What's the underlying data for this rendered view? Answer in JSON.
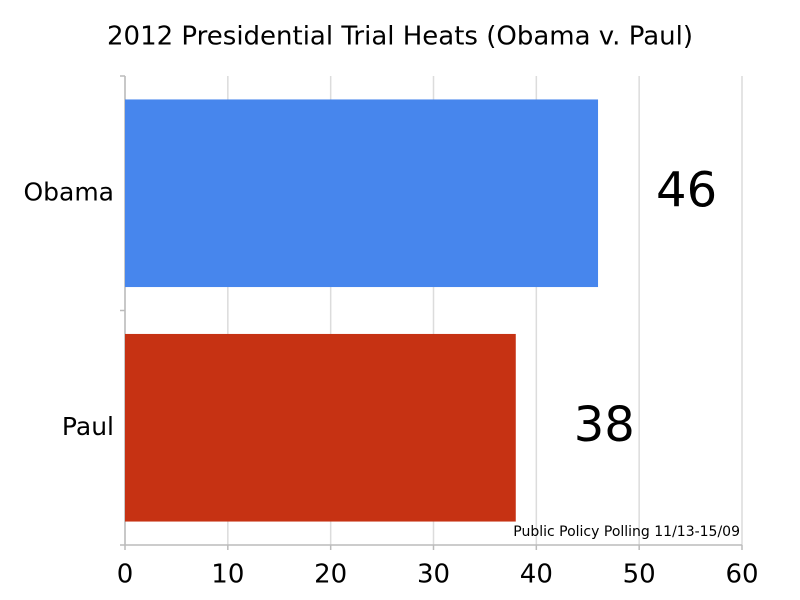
{
  "chart_data": {
    "type": "bar",
    "orientation": "horizontal",
    "title": "2012 Presidential Trial Heats (Obama v. Paul)",
    "categories": [
      "Obama",
      "Paul"
    ],
    "values": [
      46,
      38
    ],
    "colors": [
      "#4786ed",
      "#c63213"
    ],
    "xlim": [
      0,
      60
    ],
    "xticks": [
      0,
      10,
      20,
      30,
      40,
      50,
      60
    ],
    "grid": true,
    "annotation": "Public Policy Polling 11/13-15/09"
  }
}
